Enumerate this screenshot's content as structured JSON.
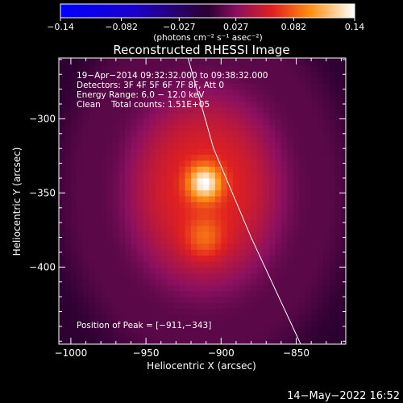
{
  "chart_data": {
    "type": "heatmap",
    "title": "Reconstructed RHESSI Image",
    "xlabel": "Heliocentric X (arcsec)",
    "ylabel": "Heliocentric Y (arcsec)",
    "xlim": [
      -1008,
      -817
    ],
    "ylim": [
      -452,
      -259
    ],
    "x_ticks": [
      -1000,
      -950,
      -900,
      -850
    ],
    "y_ticks": [
      -400,
      -350,
      -300
    ],
    "x_tick_labels": [
      "−1000",
      "−950",
      "−900",
      "−850"
    ],
    "y_tick_labels": [
      "−400",
      "−350",
      "−300"
    ],
    "colorbar": {
      "range": [
        -0.14,
        0.14
      ],
      "tick_values": [
        -0.14,
        -0.082,
        -0.027,
        0.027,
        0.082,
        0.14
      ],
      "tick_labels": [
        "−0.14",
        "−0.082",
        "−0.027",
        "0.027",
        "0.082",
        "0.14"
      ],
      "unit_label": "(photons cm⁻² s⁻¹ asec⁻²)"
    },
    "annotations": [
      "19−Apr−2014 09:32:32.000 to 09:38:32.000",
      "Detectors: 3F 4F 5F 6F 7F 8F, Att 0",
      "Energy Range: 6.0 − 12.0 keV",
      "Clean    Total counts: 1.51E+05"
    ],
    "peak_label": "Position of Peak = [−911,−343]",
    "peak_position": [
      -911,
      -343
    ],
    "sources": [
      {
        "x": -911,
        "y": -343,
        "peak": 0.14
      },
      {
        "x": -911,
        "y": -380,
        "peak": 0.09
      }
    ],
    "limb_curve": [
      [
        -922,
        -259
      ],
      [
        -905,
        -320
      ],
      [
        -880,
        -380
      ],
      [
        -847,
        -452
      ]
    ]
  },
  "footer": {
    "date": "14−May−2022 16:52"
  }
}
